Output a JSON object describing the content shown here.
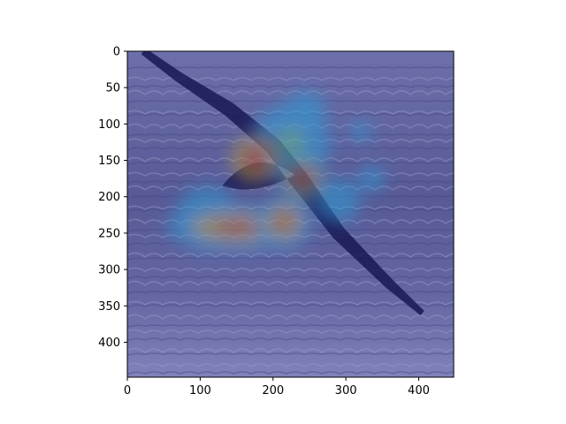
{
  "chart_data": {
    "type": "heatmap",
    "title": "",
    "xlabel": "",
    "ylabel": "",
    "xlim": [
      0,
      448
    ],
    "ylim": [
      448,
      0
    ],
    "y_inverted": true,
    "image_width": 448,
    "image_height": 448,
    "xticks": [
      0,
      100,
      200,
      300,
      400
    ],
    "yticks": [
      0,
      50,
      100,
      150,
      200,
      250,
      300,
      350,
      400
    ],
    "colormap": "jet",
    "overlay_alpha": 0.5,
    "grid": false,
    "legend": "none",
    "background_image": "ocean-waves-with-flying-albatross",
    "bird": {
      "wing_path": [
        [
          22,
          0
        ],
        [
          70,
          35
        ],
        [
          140,
          80
        ],
        [
          200,
          130
        ],
        [
          235,
          175
        ],
        [
          290,
          250
        ],
        [
          360,
          320
        ],
        [
          405,
          360
        ]
      ],
      "body_center": [
        175,
        160
      ]
    },
    "hotspots": [
      {
        "x": 175,
        "y": 148,
        "radius": 32,
        "intensity": 1.0
      },
      {
        "x": 240,
        "y": 175,
        "radius": 28,
        "intensity": 0.9
      },
      {
        "x": 150,
        "y": 242,
        "radius": 60,
        "intensity": 0.85
      },
      {
        "x": 215,
        "y": 235,
        "radius": 38,
        "intensity": 0.85
      },
      {
        "x": 225,
        "y": 125,
        "radius": 55,
        "intensity": 0.45
      },
      {
        "x": 245,
        "y": 82,
        "radius": 28,
        "intensity": 0.4
      },
      {
        "x": 320,
        "y": 110,
        "radius": 15,
        "intensity": 0.3
      },
      {
        "x": 335,
        "y": 175,
        "radius": 18,
        "intensity": 0.35
      },
      {
        "x": 290,
        "y": 205,
        "radius": 30,
        "intensity": 0.35
      },
      {
        "x": 110,
        "y": 230,
        "radius": 45,
        "intensity": 0.6
      }
    ],
    "colors": {
      "cold": "#1a1a8c",
      "sea_light": "#a9acc4",
      "sea_dark": "#4a4e6e",
      "bird": "#16163a",
      "axis": "#000000"
    }
  }
}
